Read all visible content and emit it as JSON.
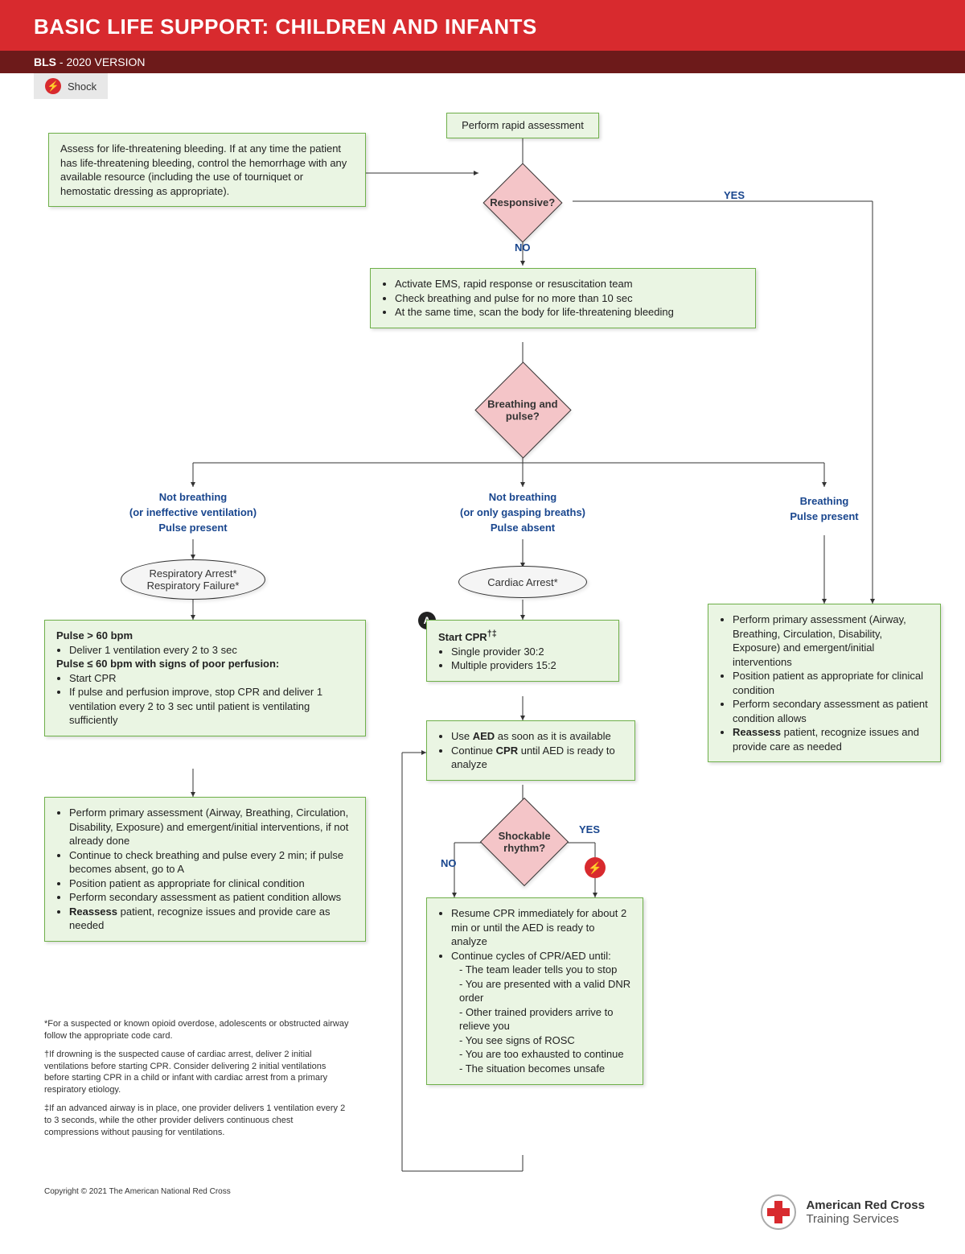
{
  "header": {
    "title": "BASIC LIFE SUPPORT: CHILDREN AND INFANTS",
    "subtitle_bold": "BLS",
    "subtitle_rest": " - 2020 VERSION",
    "shock_label": "Shock"
  },
  "colors": {
    "red": "#d82a2e",
    "darkred": "#6d1a1a",
    "green_fill": "#eaf5e3",
    "green_border": "#6fb04a",
    "pink": "#f4c5c8",
    "navy": "#19468e"
  },
  "flowchart": {
    "start": "Perform rapid assessment",
    "assess_note": "Assess for life-threatening bleeding. If at any time the patient has life-threatening bleeding, control the hemorrhage with any available resource (including the use of tourniquet or hemostatic dressing as appropriate).",
    "dec_responsive": "Responsive?",
    "yes": "YES",
    "no": "NO",
    "ems_box": [
      "Activate EMS, rapid response or resuscitation team",
      "Check breathing and pulse for no more than 10 sec",
      "At the same time, scan the body for life-threatening bleeding"
    ],
    "dec_breathing": "Breathing and pulse?",
    "branch_left": {
      "l1": "Not breathing",
      "l2": "(or ineffective ventilation)",
      "l3": "Pulse present"
    },
    "branch_mid": {
      "l1": "Not breathing",
      "l2": "(or only gasping breaths)",
      "l3": "Pulse absent"
    },
    "branch_right": {
      "l1": "Breathing",
      "l3": "Pulse present"
    },
    "oval_left": "Respiratory Arrest*\nRespiratory Failure*",
    "oval_mid": "Cardiac Arrest*",
    "left_box1_h1": "Pulse > 60 bpm",
    "left_box1_b1": "Deliver 1 ventilation every 2 to 3 sec",
    "left_box1_h2": "Pulse ≤ 60 bpm with signs of poor perfusion:",
    "left_box1_b2": [
      "Start CPR",
      "If pulse and perfusion improve, stop CPR and deliver 1 ventilation every 2 to 3 sec until patient is ventilating sufficiently"
    ],
    "left_box2": [
      "Perform primary assessment (Airway, Breathing, Circulation, Disability, Exposure) and emergent/initial interventions, if not already done",
      "Continue to check breathing and pulse every 2 min; if pulse becomes absent, go to A",
      "Position patient as appropriate for clinical condition",
      "Perform secondary assessment as patient condition allows",
      "<b>Reassess</b> patient, recognize issues and provide care as needed"
    ],
    "mid_box1_h": "Start CPR<sup>†‡</sup>",
    "mid_box1": [
      "Single provider 30:2",
      "Multiple providers 15:2"
    ],
    "mid_box2": [
      "Use <b>AED</b> as soon as it is available",
      "Continue <b>CPR</b> until AED is ready to analyze"
    ],
    "dec_shock": "Shockable rhythm?",
    "mid_box3_l1": "Resume CPR immediately for about 2 min or until the AED is ready to analyze",
    "mid_box3_l2": "Continue cycles of CPR/AED until:",
    "mid_box3_items": [
      "The team leader tells you to stop",
      "You are presented with a valid DNR order",
      "Other trained providers arrive to relieve you",
      "You see signs of ROSC",
      "You are too exhausted to continue",
      "The situation becomes unsafe"
    ],
    "right_box": [
      "Perform primary assessment (Airway, Breathing, Circulation, Disability, Exposure) and emergent/initial interventions",
      "Position patient as appropriate for clinical condition",
      "Perform secondary assessment as patient condition allows",
      "<b>Reassess</b> patient, recognize issues and provide care as needed"
    ]
  },
  "footnotes": [
    "*For a suspected or known opioid overdose, adolescents or obstructed airway follow the appropriate code card.",
    "†If drowning is the suspected cause of cardiac arrest, deliver 2 initial ventilations before starting CPR. Consider delivering 2 initial ventilations before starting CPR in a child or infant with cardiac arrest from a primary respiratory etiology.",
    "‡If an advanced airway is in place, one provider delivers 1 ventilation every 2 to 3 seconds, while the other provider delivers continuous chest compressions without pausing for ventilations."
  ],
  "copyright": "Copyright © 2021 The American National Red Cross",
  "logo": {
    "line1": "American Red Cross",
    "line2": "Training Services"
  }
}
